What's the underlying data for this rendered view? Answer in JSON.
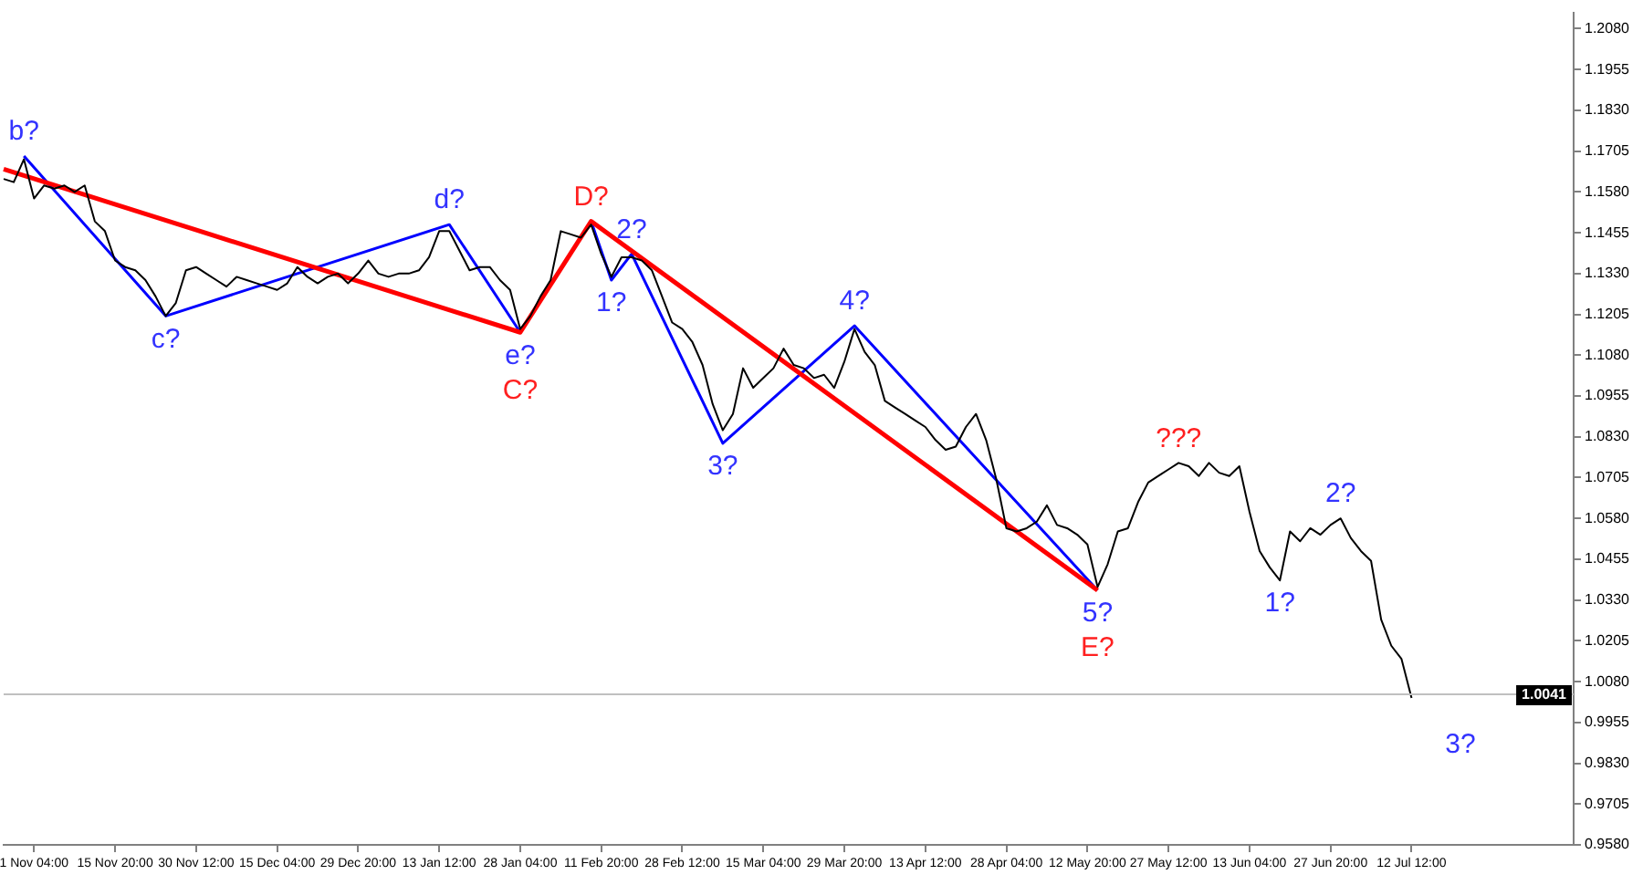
{
  "chart_data": {
    "type": "line",
    "categories": [
      null,
      null,
      null,
      "1 Nov 04:00",
      null,
      null,
      null,
      null,
      null,
      null,
      null,
      "15 Nov 20:00",
      null,
      null,
      null,
      null,
      null,
      null,
      null,
      "30 Nov 12:00",
      null,
      null,
      null,
      null,
      null,
      null,
      null,
      "15 Dec 04:00",
      null,
      null,
      null,
      null,
      null,
      null,
      null,
      "29 Dec 20:00",
      null,
      null,
      null,
      null,
      null,
      null,
      null,
      "13 Jan 12:00",
      null,
      null,
      null,
      null,
      null,
      null,
      null,
      "28 Jan 04:00",
      null,
      null,
      null,
      null,
      null,
      null,
      null,
      "11 Feb 20:00",
      null,
      null,
      null,
      null,
      null,
      null,
      null,
      "28 Feb 12:00",
      null,
      null,
      null,
      null,
      null,
      null,
      null,
      "15 Mar 04:00",
      null,
      null,
      null,
      null,
      null,
      null,
      null,
      "29 Mar 20:00",
      null,
      null,
      null,
      null,
      null,
      null,
      null,
      "13 Apr 12:00",
      null,
      null,
      null,
      null,
      null,
      null,
      null,
      "28 Apr 04:00",
      null,
      null,
      null,
      null,
      null,
      null,
      null,
      "12 May 20:00",
      null,
      null,
      null,
      null,
      null,
      null,
      null,
      "27 May 12:00",
      null,
      null,
      null,
      null,
      null,
      null,
      null,
      "13 Jun 04:00",
      null,
      null,
      null,
      null,
      null,
      null,
      null,
      "27 Jun 20:00",
      null,
      null,
      null,
      null,
      null,
      null,
      null,
      "12 Jul 12:00",
      null,
      null,
      null,
      null,
      null,
      null,
      null,
      null,
      null,
      null,
      null,
      null,
      null,
      null,
      null,
      null
    ],
    "ylim": [
      0.958,
      1.213
    ],
    "yticks": [
      {
        "value": 0.958,
        "label": "0.9580"
      },
      0.9705,
      {
        "value": 0.983,
        "label": "0.9830"
      },
      0.9955,
      {
        "value": 1.008,
        "label": "1.0080"
      },
      1.0205,
      {
        "value": 1.033,
        "label": "1.0330"
      },
      1.0455,
      {
        "value": 1.058,
        "label": "1.0580"
      },
      1.0705,
      {
        "value": 1.083,
        "label": "1.0830"
      },
      1.0955,
      {
        "value": 1.108,
        "label": "1.1080"
      },
      1.1205,
      {
        "value": 1.133,
        "label": "1.1330"
      },
      1.1455,
      {
        "value": 1.158,
        "label": "1.1580"
      },
      1.1705,
      {
        "value": 1.183,
        "label": "1.1830"
      },
      1.1955,
      {
        "value": 1.208,
        "label": "1.2080"
      }
    ],
    "grid": false,
    "series": [
      {
        "color": "#000000",
        "values": [
          1.162,
          1.161,
          1.168,
          1.156,
          1.16,
          1.159,
          1.16,
          1.158,
          1.16,
          1.149,
          1.146,
          1.137,
          1.135,
          1.134,
          1.131,
          1.126,
          1.12,
          1.124,
          1.134,
          1.135,
          1.133,
          1.131,
          1.129,
          1.132,
          1.131,
          1.13,
          1.129,
          1.128,
          1.13,
          1.135,
          1.132,
          1.13,
          1.132,
          1.133,
          1.13,
          1.133,
          1.137,
          1.133,
          1.132,
          1.133,
          1.133,
          1.134,
          1.138,
          1.146,
          1.146,
          1.14,
          1.134,
          1.135,
          1.135,
          1.131,
          1.128,
          1.116,
          1.12,
          1.126,
          1.131,
          1.146,
          1.145,
          1.144,
          1.148,
          1.139,
          1.132,
          1.138,
          1.138,
          1.137,
          1.134,
          1.126,
          1.118,
          1.116,
          1.112,
          1.105,
          1.093,
          1.085,
          1.09,
          1.104,
          1.098,
          1.101,
          1.104,
          1.11,
          1.105,
          1.104,
          1.101,
          1.102,
          1.098,
          1.106,
          1.116,
          1.109,
          1.105,
          1.094,
          1.092,
          1.09,
          1.088,
          1.086,
          1.082,
          1.079,
          1.08,
          1.086,
          1.09,
          1.082,
          1.07,
          1.055,
          1.054,
          1.055,
          1.057,
          1.062,
          1.056,
          1.055,
          1.053,
          1.05,
          1.037,
          1.044,
          1.054,
          1.055,
          1.063,
          1.069,
          1.071,
          1.073,
          1.075,
          1.074,
          1.071,
          1.075,
          1.072,
          1.071,
          1.074,
          1.06,
          1.048,
          1.043,
          1.039,
          1.054,
          1.051,
          1.055,
          1.053,
          1.056,
          1.058,
          1.052,
          1.048,
          1.045,
          1.027,
          1.019,
          1.015,
          1.003,
          null,
          null,
          null,
          null,
          null,
          null,
          null,
          null,
          null,
          null,
          null,
          null,
          null,
          null,
          null,
          null
        ]
      },
      {
        "color": "#ff0000",
        "values": [
          1.165,
          null,
          null,
          null,
          null,
          null,
          null,
          null,
          null,
          null,
          null,
          null,
          null,
          null,
          null,
          null,
          null,
          null,
          null,
          null,
          null,
          null,
          null,
          null,
          null,
          null,
          null,
          null,
          null,
          null,
          null,
          null,
          null,
          null,
          null,
          null,
          null,
          null,
          null,
          null,
          null,
          null,
          null,
          null,
          null,
          null,
          null,
          null,
          null,
          null,
          null,
          1.115,
          null,
          null,
          null,
          null,
          null,
          null,
          1.149,
          null,
          null,
          null,
          null,
          null,
          null,
          null,
          null,
          null,
          null,
          null,
          null,
          null,
          null,
          null,
          null,
          null,
          null,
          null,
          null,
          null,
          null,
          null,
          null,
          null,
          null,
          null,
          null,
          null,
          null,
          null,
          null,
          null,
          null,
          null,
          null,
          null,
          null,
          null,
          null,
          null,
          null,
          null,
          null,
          null,
          null,
          null,
          null,
          null,
          1.036,
          null,
          null,
          null,
          null,
          null,
          null,
          null,
          null,
          null,
          null,
          null,
          null,
          null,
          null,
          null,
          null,
          null,
          null,
          null,
          null,
          null,
          null,
          null,
          null,
          null,
          null,
          null,
          null,
          null,
          null,
          null,
          null,
          null,
          null,
          null,
          null,
          null,
          null,
          null,
          null,
          null,
          null,
          null,
          null,
          null,
          null,
          null
        ]
      },
      {
        "color": "#0000ff",
        "values": [
          null,
          null,
          1.169,
          null,
          null,
          null,
          null,
          null,
          null,
          null,
          null,
          null,
          null,
          null,
          null,
          null,
          1.12,
          null,
          null,
          null,
          null,
          null,
          null,
          null,
          null,
          null,
          null,
          null,
          null,
          null,
          null,
          null,
          null,
          null,
          null,
          null,
          null,
          null,
          null,
          null,
          null,
          null,
          null,
          null,
          1.148,
          null,
          null,
          null,
          null,
          null,
          null,
          1.115,
          null,
          null,
          null,
          null,
          null,
          null,
          1.149,
          null,
          1.131,
          null,
          1.139,
          null,
          null,
          null,
          null,
          null,
          null,
          null,
          null,
          1.081,
          null,
          null,
          null,
          null,
          null,
          null,
          null,
          null,
          null,
          null,
          null,
          null,
          1.117,
          null,
          null,
          null,
          null,
          null,
          null,
          null,
          null,
          null,
          null,
          null,
          null,
          null,
          null,
          null,
          null,
          null,
          null,
          null,
          null,
          null,
          null,
          null,
          1.036,
          null,
          null,
          null,
          null,
          null,
          null,
          null,
          null,
          null,
          null,
          null,
          null,
          null,
          null,
          null,
          null,
          null,
          null,
          null,
          null,
          null,
          null,
          null,
          null,
          null,
          null,
          null,
          null,
          null,
          null,
          null,
          null,
          null,
          null,
          null,
          null,
          null,
          null,
          null,
          null,
          null,
          null,
          null,
          null,
          null,
          null,
          null
        ]
      }
    ],
    "ref_lines": [
      {
        "axis": "y",
        "value": 1.0041,
        "label": "1.0041",
        "color": "#c0c0c0"
      }
    ],
    "annotations": [
      {
        "text": "b?",
        "y": 1.169
      },
      {
        "text": "c?",
        "y": 1.12
      },
      {
        "text": "d?",
        "y": 1.148
      },
      {
        "text": "e?",
        "y": 1.115
      },
      {
        "text": "C?",
        "y": 1.115
      },
      {
        "text": "D?",
        "y": 1.149
      },
      {
        "text": "1?",
        "y": 1.131
      },
      {
        "text": "2?",
        "y": 1.139
      },
      {
        "text": "3?",
        "y": 1.081
      },
      {
        "text": "4?",
        "y": 1.117
      },
      {
        "text": "5?",
        "y": 1.036
      },
      {
        "text": "E?",
        "y": 1.036
      },
      {
        "text": "???",
        "y": 1.075
      },
      {
        "text": "1?",
        "y": 1.039
      },
      {
        "text": "2?",
        "y": 1.058
      },
      "3?"
    ]
  }
}
